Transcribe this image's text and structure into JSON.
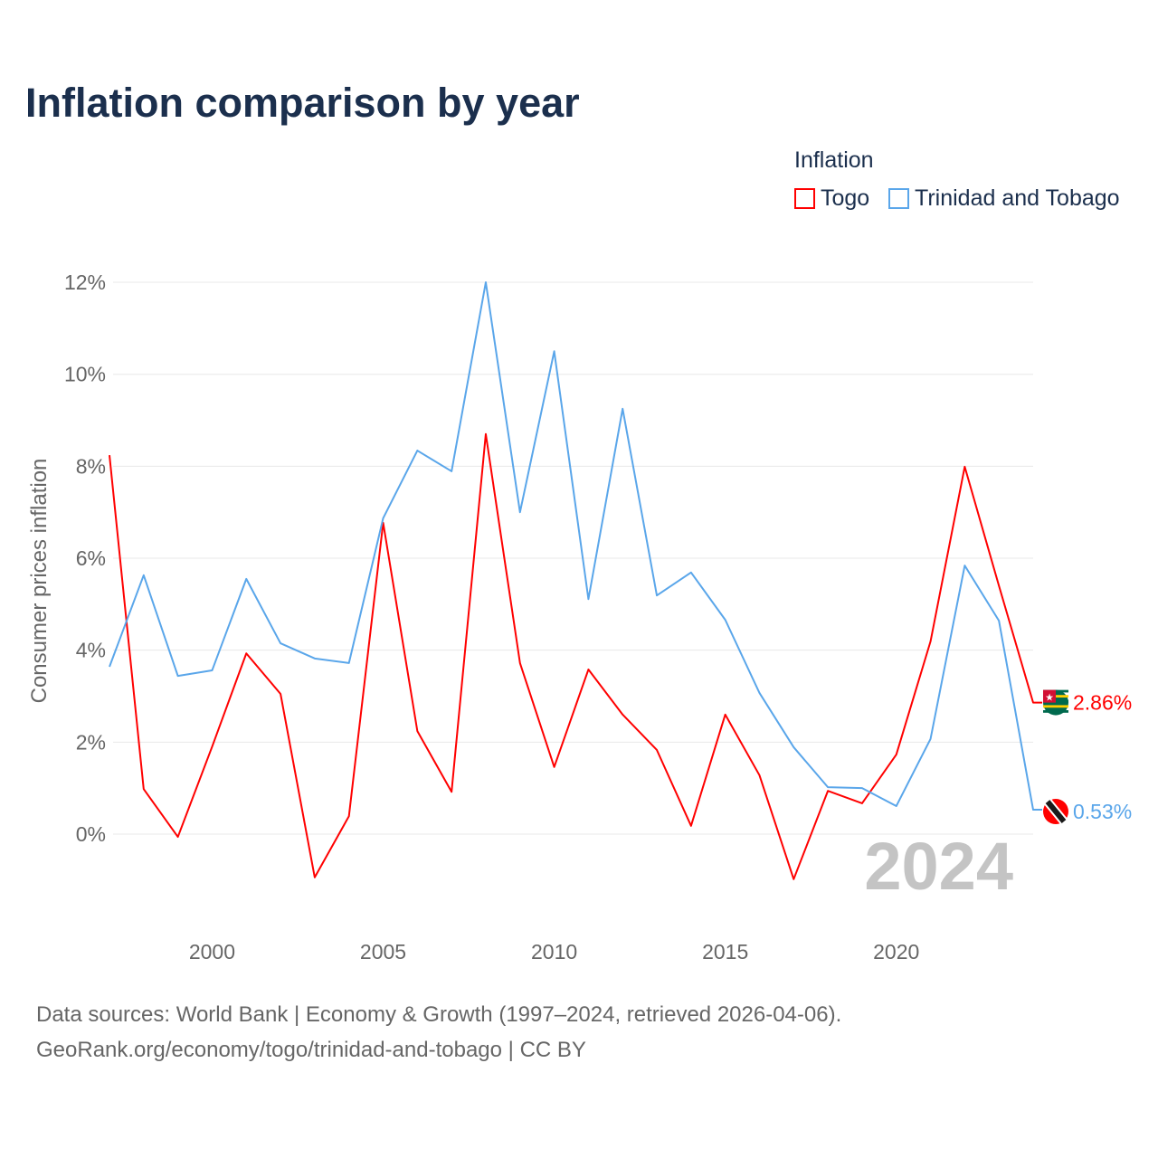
{
  "title": "Inflation comparison by year",
  "legend": {
    "title": "Inflation",
    "items": [
      "Togo",
      "Trinidad and Tobago"
    ]
  },
  "colors": {
    "togo": "#ff0000",
    "tt": "#5aa6ea"
  },
  "chart_data": {
    "type": "line",
    "title": "Inflation comparison by year",
    "xlabel": "",
    "ylabel": "Consumer prices inflation",
    "x": [
      1997,
      1998,
      1999,
      2000,
      2001,
      2002,
      2003,
      2004,
      2005,
      2006,
      2007,
      2008,
      2009,
      2010,
      2011,
      2012,
      2013,
      2014,
      2015,
      2016,
      2017,
      2018,
      2019,
      2020,
      2021,
      2022,
      2023,
      2024
    ],
    "xlim": [
      1997,
      2024
    ],
    "ylim": [
      -1.5,
      12
    ],
    "x_ticks": [
      "2000",
      "2005",
      "2010",
      "2015",
      "2020"
    ],
    "y_ticks": [
      "0%",
      "2%",
      "4%",
      "6%",
      "8%",
      "10%",
      "12%"
    ],
    "grid": true,
    "legend_position": "top-right",
    "series": [
      {
        "name": "Togo",
        "end_label": "2.86%",
        "values": [
          8.24,
          0.98,
          -0.06,
          1.9,
          3.93,
          3.05,
          -0.94,
          0.39,
          6.77,
          2.24,
          0.92,
          8.7,
          3.72,
          1.46,
          3.58,
          2.6,
          1.83,
          0.18,
          2.6,
          1.28,
          -0.98,
          0.94,
          0.67,
          1.73,
          4.19,
          7.99,
          5.4,
          2.86
        ]
      },
      {
        "name": "Trinidad and Tobago",
        "end_label": "0.53%",
        "values": [
          3.64,
          5.63,
          3.44,
          3.56,
          5.55,
          4.15,
          3.82,
          3.72,
          6.87,
          8.34,
          7.89,
          12.0,
          7.0,
          10.5,
          5.11,
          9.25,
          5.19,
          5.69,
          4.66,
          3.07,
          1.89,
          1.02,
          1.0,
          0.61,
          2.07,
          5.84,
          4.64,
          0.53
        ]
      }
    ],
    "annotation": "2024"
  },
  "footer": {
    "line1": "Data sources: World Bank | Economy & Growth (1997–2024, retrieved 2026-04-06).",
    "line2": "GeoRank.org/economy/togo/trinidad-and-tobago | CC BY"
  }
}
